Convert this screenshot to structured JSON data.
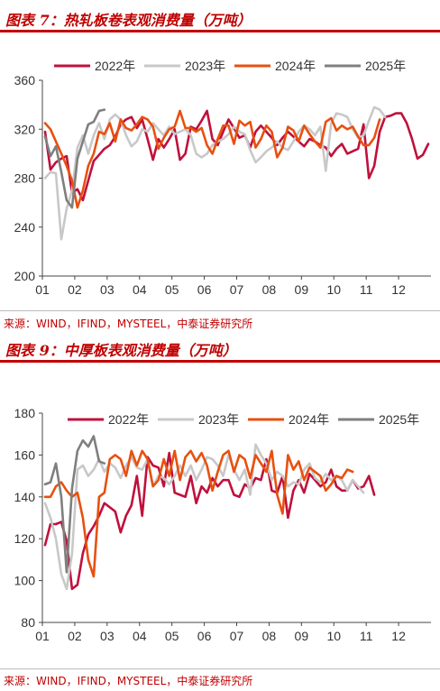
{
  "charts": [
    {
      "title": "图表 7：热轧板卷表观消费量（万吨）",
      "source": "来源：WIND，IFIND，MYSTEEL，中泰证券研究所"
    },
    {
      "title": "图表 9：中厚板表观消费量（万吨）",
      "source": "来源：WIND，IFIND，MYSTEEL，中泰证券研究所"
    }
  ],
  "chart_data": [
    {
      "type": "line",
      "x_ticks": [
        "01",
        "02",
        "03",
        "04",
        "05",
        "06",
        "07",
        "08",
        "09",
        "10",
        "11",
        "12"
      ],
      "ylim": [
        200,
        360
      ],
      "y_ticks": [
        200,
        240,
        280,
        320,
        360
      ],
      "legend_position": "top",
      "series": [
        {
          "name": "2022年",
          "color": "#c0103c",
          "values": [
            318,
            287,
            293,
            296,
            298,
            268,
            271,
            262,
            278,
            294,
            299,
            304,
            307,
            314,
            324,
            328,
            330,
            321,
            328,
            312,
            295,
            312,
            305,
            312,
            320,
            295,
            300,
            322,
            320,
            327,
            335,
            312,
            307,
            318,
            328,
            321,
            313,
            315,
            305,
            318,
            323,
            318,
            313,
            307,
            313,
            318,
            314,
            310,
            306,
            312,
            310,
            307,
            305,
            298,
            304,
            308,
            300,
            302,
            304,
            324,
            280,
            290,
            318,
            330,
            331,
            333,
            333,
            325,
            312,
            296,
            299,
            308
          ]
        },
        {
          "name": "2023年",
          "color": "#c8c8c8",
          "values": [
            280,
            285,
            284,
            230,
            255,
            270,
            305,
            315,
            300,
            315,
            325,
            312,
            328,
            332,
            328,
            315,
            306,
            310,
            320,
            318,
            325,
            320,
            315,
            322,
            316,
            318,
            320,
            315,
            300,
            297,
            300,
            307,
            310,
            312,
            316,
            322,
            318,
            316,
            303,
            293,
            297,
            302,
            305,
            310,
            305,
            303,
            310,
            318,
            323,
            320,
            315,
            322,
            286,
            325,
            333,
            332,
            330,
            320,
            313,
            315,
            327,
            338,
            336,
            330
          ]
        },
        {
          "name": "2024年",
          "color": "#e8500f",
          "values": [
            325,
            320,
            310,
            300,
            290,
            278,
            256,
            270,
            290,
            300,
            318,
            316,
            325,
            310,
            328,
            321,
            319,
            324,
            330,
            328,
            322,
            304,
            313,
            320,
            322,
            335,
            321,
            321,
            318,
            321,
            307,
            300,
            312,
            323,
            323,
            308,
            327,
            323,
            326,
            305,
            312,
            323,
            318,
            297,
            305,
            322,
            319,
            310,
            323,
            316,
            310,
            305,
            326,
            329,
            319,
            323,
            320,
            322,
            314,
            307,
            307,
            313,
            328
          ]
        },
        {
          "name": "2025年",
          "color": "#7f7f7f",
          "values": [
            314,
            298,
            306,
            285,
            262,
            256,
            296,
            310,
            324,
            326,
            335,
            336
          ]
        }
      ]
    },
    {
      "type": "line",
      "x_ticks": [
        "01",
        "02",
        "03",
        "04",
        "05",
        "06",
        "07",
        "08",
        "09",
        "10",
        "11",
        "12"
      ],
      "ylim": [
        80,
        180
      ],
      "y_ticks": [
        80,
        100,
        120,
        140,
        160,
        180
      ],
      "legend_position": "top",
      "series": [
        {
          "name": "2022年",
          "color": "#c0103c",
          "values": [
            117,
            127,
            127,
            128,
            119,
            96,
            98,
            113,
            122,
            126,
            131,
            137,
            135,
            133,
            123,
            131,
            136,
            150,
            131,
            159,
            155,
            154,
            145,
            161,
            142,
            141,
            140,
            150,
            137,
            145,
            142,
            149,
            145,
            148,
            148,
            141,
            140,
            146,
            144,
            149,
            148,
            158,
            143,
            142,
            150,
            130,
            143,
            148,
            142,
            151,
            148,
            145,
            147,
            153,
            145,
            143,
            143,
            148,
            144,
            145,
            150,
            141
          ]
        },
        {
          "name": "2023年",
          "color": "#c8c8c8",
          "values": [
            137,
            130,
            120,
            103,
            96,
            113,
            153,
            155,
            150,
            153,
            158,
            152,
            156,
            154,
            149,
            155,
            159,
            154,
            153,
            158,
            145,
            150,
            149,
            146,
            150,
            155,
            150,
            155,
            148,
            153,
            159,
            158,
            155,
            150,
            160,
            153,
            148,
            153,
            141,
            165,
            160,
            156,
            148,
            152,
            150,
            145,
            147,
            146,
            153,
            156,
            149,
            147,
            151,
            148,
            150,
            148,
            143,
            148,
            145,
            142
          ]
        },
        {
          "name": "2024年",
          "color": "#e8500f",
          "values": [
            140,
            140,
            145,
            147,
            143,
            140,
            142,
            130,
            110,
            102,
            140,
            142,
            158,
            160,
            158,
            150,
            162,
            155,
            162,
            158,
            145,
            148,
            158,
            150,
            162,
            148,
            159,
            162,
            157,
            161,
            155,
            143,
            152,
            160,
            162,
            152,
            160,
            158,
            149,
            160,
            156,
            152,
            162,
            141,
            132,
            160,
            153,
            157,
            148,
            154,
            152,
            150,
            143,
            146,
            150,
            149,
            153,
            152
          ]
        },
        {
          "name": "2025年",
          "color": "#7f7f7f",
          "values": [
            146,
            147,
            156,
            140,
            104,
            144,
            162,
            167,
            164,
            169,
            157,
            156
          ]
        }
      ]
    }
  ]
}
